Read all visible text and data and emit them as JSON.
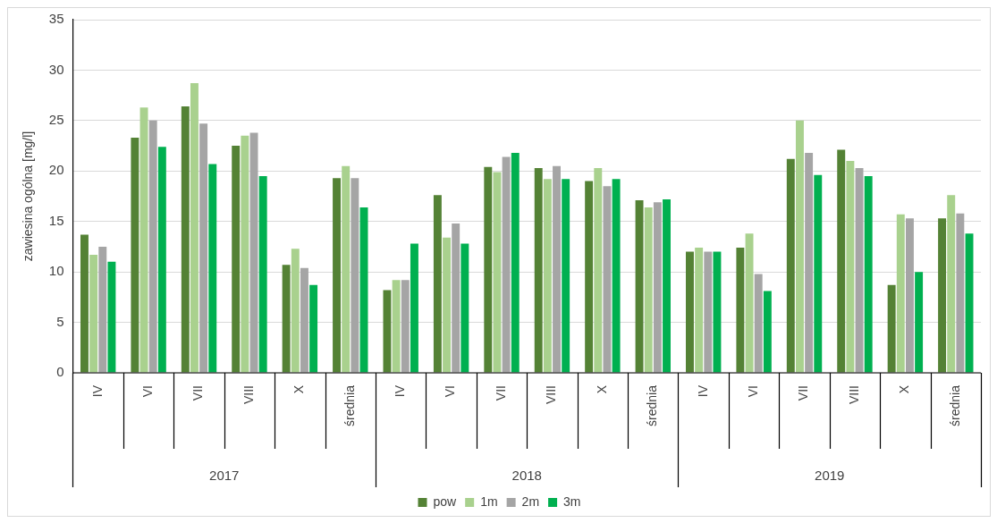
{
  "chart_data": {
    "type": "bar",
    "ylabel": "zawiesina ogólna [mg/l]",
    "categories": [
      "IV",
      "VI",
      "VII",
      "VIII",
      "X",
      "średnia",
      "IV",
      "VI",
      "VII",
      "VIII",
      "X",
      "średnia",
      "IV",
      "VI",
      "VII",
      "VIII",
      "X",
      "średnia"
    ],
    "annotations": [
      "2017",
      "2018",
      "2019"
    ],
    "series": [
      {
        "name": "pow",
        "color": "#548235",
        "values": [
          13.7,
          23.3,
          26.4,
          22.5,
          10.7,
          19.3,
          8.2,
          17.6,
          20.4,
          20.3,
          19.0,
          17.1,
          12.0,
          12.4,
          21.2,
          22.1,
          8.7,
          15.3
        ]
      },
      {
        "name": "1m",
        "color": "#a9d18e",
        "values": [
          11.7,
          26.3,
          28.7,
          23.5,
          12.3,
          20.5,
          9.2,
          13.4,
          19.9,
          19.2,
          20.3,
          16.4,
          12.4,
          13.8,
          25.0,
          21.0,
          15.7,
          17.6
        ]
      },
      {
        "name": "2m",
        "color": "#a5a5a5",
        "values": [
          12.5,
          25.0,
          24.7,
          23.8,
          10.4,
          19.3,
          9.2,
          14.8,
          21.4,
          20.5,
          18.5,
          16.9,
          12.0,
          9.8,
          21.8,
          20.3,
          15.3,
          15.8
        ]
      },
      {
        "name": "3m",
        "color": "#00b050",
        "values": [
          11.0,
          22.4,
          20.7,
          19.5,
          8.7,
          16.4,
          12.8,
          12.8,
          21.8,
          19.2,
          19.2,
          17.2,
          12.0,
          8.1,
          19.6,
          19.5,
          10.0,
          13.8
        ]
      }
    ],
    "ylim": [
      0,
      35
    ],
    "yticks": [
      0,
      5,
      10,
      15,
      20,
      25,
      30,
      35
    ],
    "grid": "y",
    "legend": "bottom"
  }
}
